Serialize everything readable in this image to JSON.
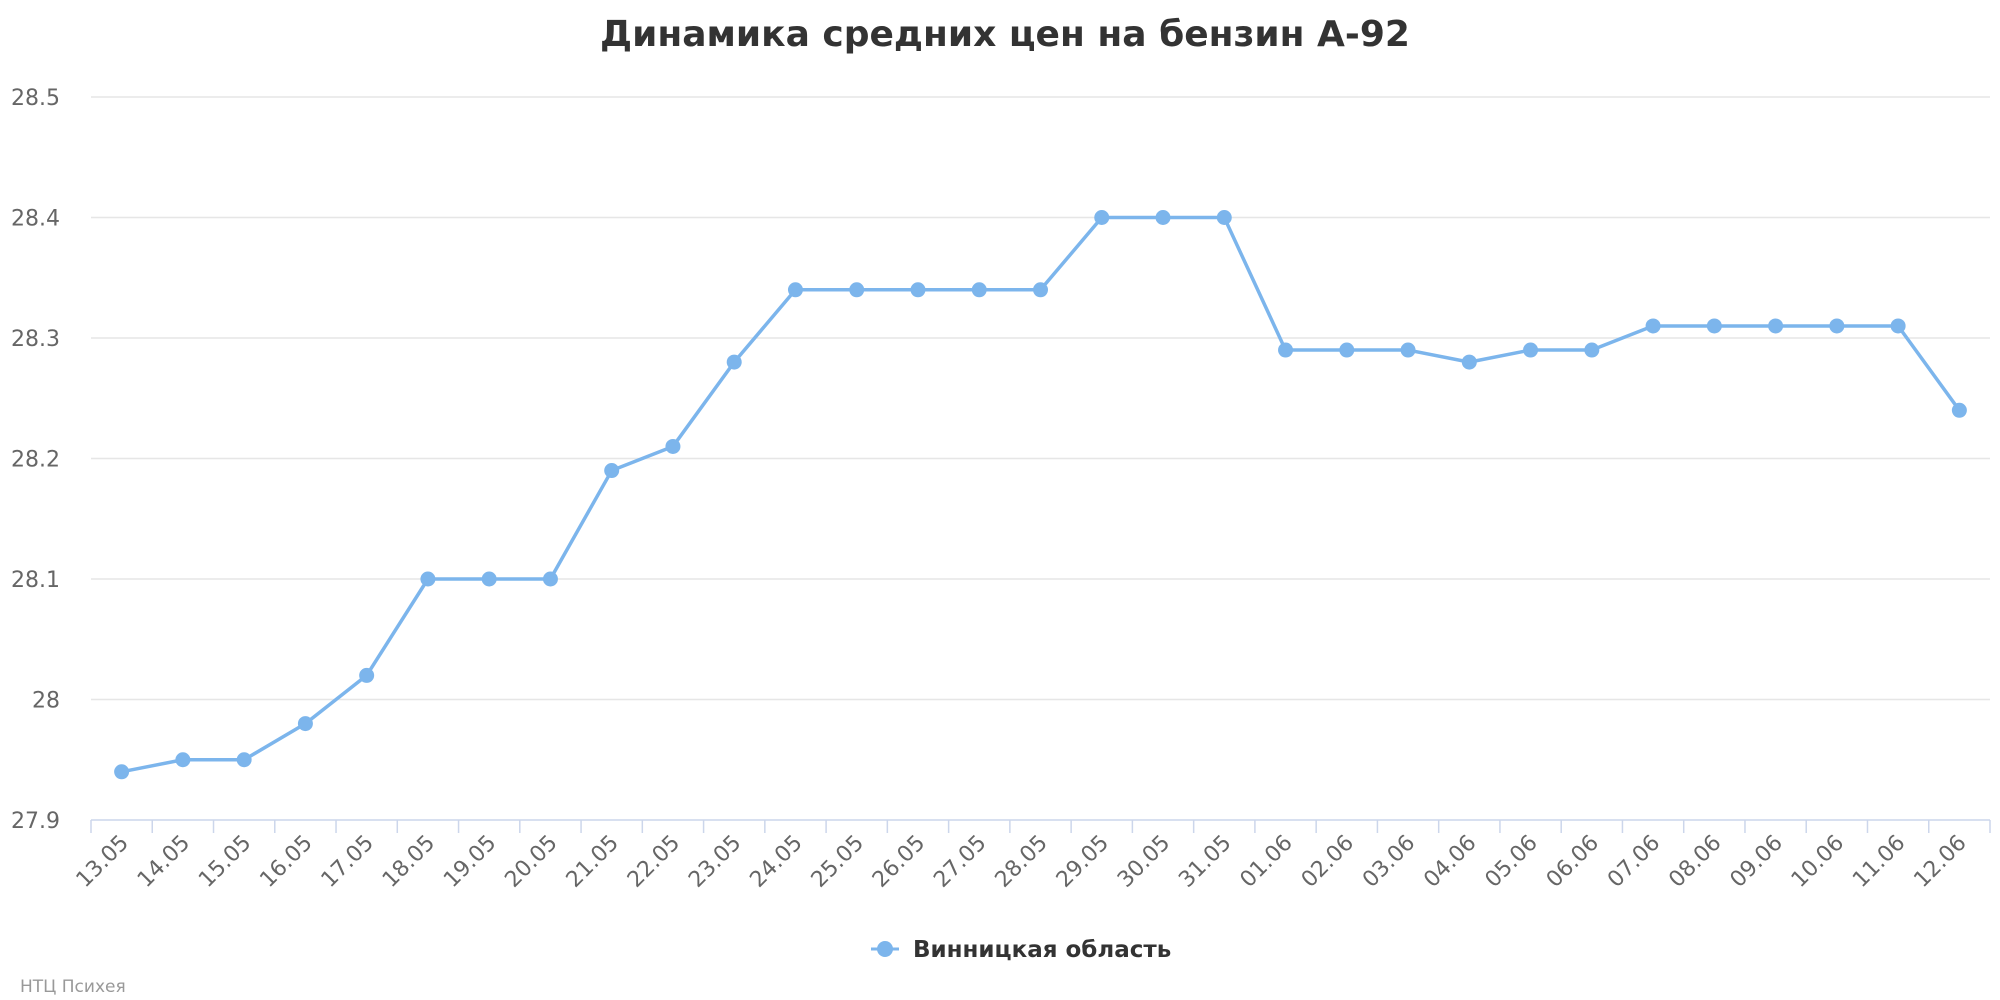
{
  "chart_data": {
    "type": "line",
    "title": "Динамика средних цен на бензин А-92",
    "xlabel": "",
    "ylabel": "",
    "categories": [
      "13.05",
      "14.05",
      "15.05",
      "16.05",
      "17.05",
      "18.05",
      "19.05",
      "20.05",
      "21.05",
      "22.05",
      "23.05",
      "24.05",
      "25.05",
      "26.05",
      "27.05",
      "28.05",
      "29.05",
      "30.05",
      "31.05",
      "01.06",
      "02.06",
      "03.06",
      "04.06",
      "05.06",
      "06.06",
      "07.06",
      "08.06",
      "09.06",
      "10.06",
      "11.06",
      "12.06"
    ],
    "series": [
      {
        "name": "Винницкая область",
        "color": "#7cb5ec",
        "values": [
          27.94,
          27.95,
          27.95,
          27.98,
          28.02,
          28.1,
          28.1,
          28.1,
          28.19,
          28.21,
          28.28,
          28.34,
          28.34,
          28.34,
          28.34,
          28.34,
          28.4,
          28.4,
          28.4,
          28.29,
          28.29,
          28.29,
          28.28,
          28.29,
          28.29,
          28.31,
          28.31,
          28.31,
          28.31,
          28.31,
          28.24
        ]
      }
    ],
    "ylim": [
      27.9,
      28.5
    ],
    "yticks": [
      "27.9",
      "28",
      "28.1",
      "28.2",
      "28.3",
      "28.4",
      "28.5"
    ],
    "grid": true,
    "legend_position": "bottom-center"
  },
  "credits": "НТЦ Психея"
}
